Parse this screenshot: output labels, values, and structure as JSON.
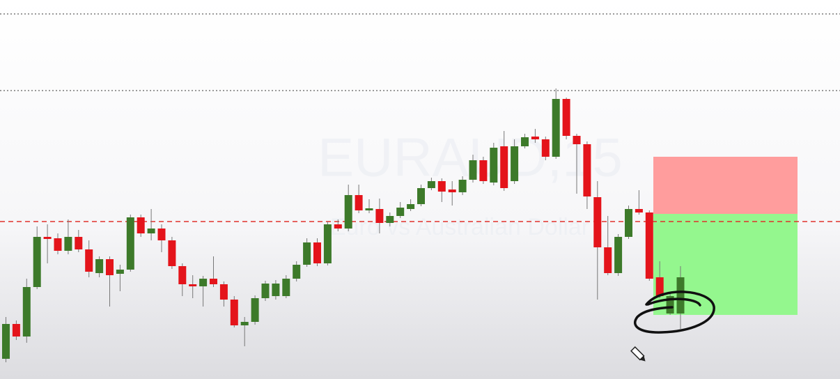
{
  "chart_data": {
    "type": "candlestick",
    "title": "EURAUD,15",
    "subtitle": "Euro vs Australian Dollar",
    "ylim": [
      0,
      544
    ],
    "up_color": "#3d7a2a",
    "down_color": "#e4141b",
    "open": [
      29,
      79,
      61,
      132,
      204,
      202,
      184,
      204,
      186,
      152,
      172,
      151,
      157,
      232,
      209,
      216,
      199,
      162,
      136,
      133,
      144,
      136,
      114,
      77,
      82,
      116,
      119,
      119,
      144,
      164,
      196,
      166,
      222,
      216,
      264,
      242,
      244,
      224,
      234,
      244,
      251,
      274,
      284,
      272,
      268,
      286,
      314,
      282,
      334,
      284,
      334,
      348,
      344,
      319,
      402,
      349,
      337,
      261,
      189,
      152,
      204,
      244,
      239,
      146,
      94,
      94
    ],
    "high": [
      89,
      84,
      144,
      219,
      222,
      209,
      229,
      214,
      199,
      176,
      176,
      164,
      236,
      236,
      244,
      222,
      204,
      166,
      149,
      148,
      176,
      140,
      119,
      89,
      120,
      141,
      142,
      149,
      169,
      202,
      202,
      226,
      229,
      279,
      279,
      258,
      259,
      239,
      254,
      258,
      279,
      289,
      288,
      284,
      291,
      322,
      319,
      339,
      356,
      344,
      352,
      359,
      348,
      417,
      404,
      352,
      341,
      284,
      234,
      208,
      249,
      271,
      242,
      169,
      124,
      162
    ],
    "low": [
      24,
      56,
      52,
      129,
      166,
      179,
      179,
      182,
      146,
      146,
      104,
      126,
      154,
      204,
      199,
      182,
      158,
      119,
      116,
      104,
      132,
      104,
      74,
      47,
      78,
      112,
      114,
      116,
      140,
      161,
      162,
      163,
      212,
      212,
      238,
      238,
      209,
      219,
      231,
      241,
      248,
      271,
      254,
      249,
      264,
      282,
      280,
      278,
      270,
      280,
      331,
      339,
      314,
      316,
      344,
      266,
      244,
      114,
      149,
      148,
      201,
      236,
      141,
      116,
      92,
      72
    ],
    "close": [
      79,
      61,
      132,
      204,
      201,
      184,
      204,
      186,
      154,
      172,
      149,
      157,
      232,
      209,
      216,
      199,
      162,
      136,
      133,
      144,
      136,
      114,
      77,
      82,
      116,
      137,
      137,
      144,
      164,
      196,
      166,
      222,
      216,
      264,
      242,
      245,
      224,
      234,
      246,
      251,
      274,
      284,
      269,
      268,
      286,
      314,
      284,
      332,
      274,
      334,
      347,
      344,
      319,
      402,
      349,
      337,
      262,
      189,
      152,
      204,
      244,
      239,
      144,
      119,
      119,
      146
    ],
    "lines": [
      {
        "value": 524,
        "color": "#9a9a9a",
        "style": "dotted"
      },
      {
        "value": 414,
        "color": "#9a9a9a",
        "style": "dotted"
      },
      {
        "value": 226,
        "color": "#e0302a",
        "style": "dashed"
      }
    ],
    "position": {
      "stop_loss": 319,
      "entry": 237,
      "take_profit": 92,
      "stop_color": "#ff9d9d",
      "target_color": "#94f78e"
    }
  }
}
